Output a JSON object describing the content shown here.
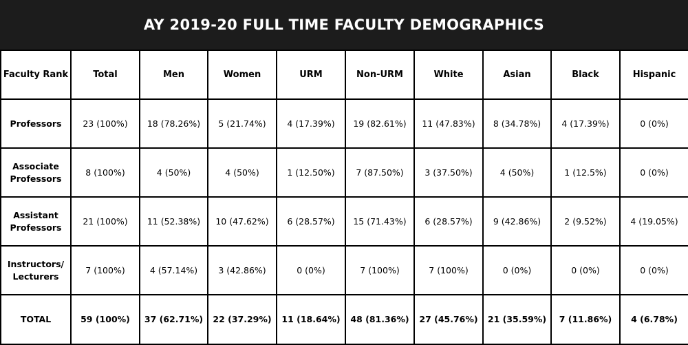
{
  "title": "AY 2019-20 FULL TIME FACULTY DEMOGRAPHICS",
  "columns": [
    "Faculty Rank",
    "Total",
    "Men",
    "Women",
    "URM",
    "Non-URM",
    "White",
    "Asian",
    "Black",
    "Hispanic"
  ],
  "rows": [
    {
      "rank": [
        "Professors"
      ],
      "cells": [
        "23 (100%)",
        "18 (78.26%)",
        "5 (21.74%)",
        "4 (17.39%)",
        "19 (82.61%)",
        "11 (47.83%)",
        "8 (34.78%)",
        "4 (17.39%)",
        "0 (0%)"
      ]
    },
    {
      "rank": [
        "Associate",
        "Professors"
      ],
      "cells": [
        "8 (100%)",
        "4 (50%)",
        "4 (50%)",
        "1 (12.50%)",
        "7 (87.50%)",
        "3 (37.50%)",
        "4 (50%)",
        "1 (12.5%)",
        "0 (0%)"
      ]
    },
    {
      "rank": [
        "Assistant",
        "Professors"
      ],
      "cells": [
        "21 (100%)",
        "11 (52.38%)",
        "10 (47.62%)",
        "6 (28.57%)",
        "15 (71.43%)",
        "6 (28.57%)",
        "9 (42.86%)",
        "2 (9.52%)",
        "4 (19.05%)"
      ]
    },
    {
      "rank": [
        "Instructors/",
        "Lecturers"
      ],
      "cells": [
        "7 (100%)",
        "4 (57.14%)",
        "3 (42.86%)",
        "0 (0%)",
        "7 (100%)",
        "7 (100%)",
        "0 (0%)",
        "0 (0%)",
        "0 (0%)"
      ]
    }
  ],
  "total": {
    "rank": "TOTAL",
    "cells": [
      "59 (100%)",
      "37 (62.71%)",
      "22 (37.29%)",
      "11 (18.64%)",
      "48 (81.36%)",
      "27 (45.76%)",
      "21 (35.59%)",
      "7 (11.86%)",
      "4 (6.78%)"
    ]
  }
}
